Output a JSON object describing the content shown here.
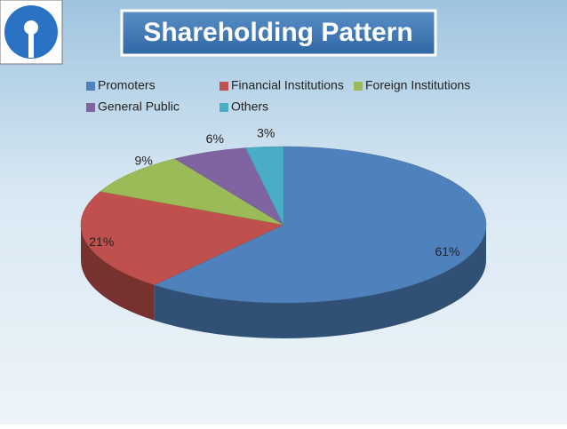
{
  "chart_data": {
    "type": "pie",
    "title": "Shareholding Pattern",
    "categories": [
      "Promoters",
      "Financial Institutions",
      "Foreign Institutions",
      "General Public",
      "Others"
    ],
    "values": [
      61,
      21,
      9,
      6,
      3
    ],
    "value_labels": [
      "61%",
      "21%",
      "9%",
      "6%",
      "3%"
    ],
    "colors": [
      "#4f81bd",
      "#c0504d",
      "#9bbb59",
      "#8064a2",
      "#4bacc6"
    ]
  }
}
